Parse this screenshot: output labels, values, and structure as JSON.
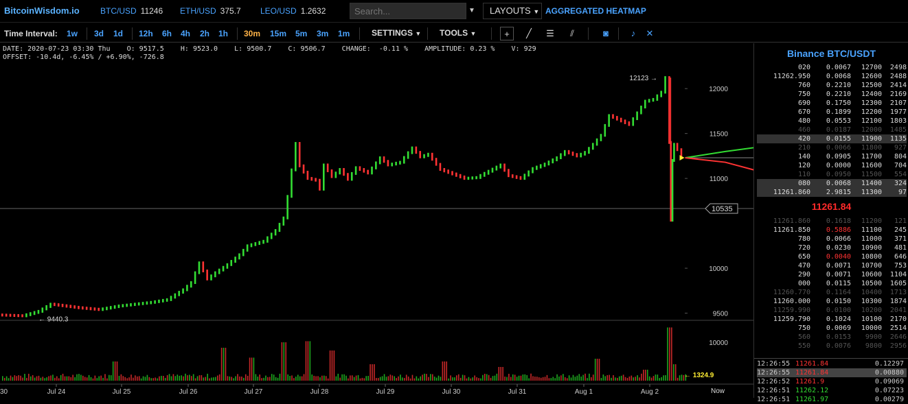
{
  "topbar": {
    "brand": "BitcoinWisdom.io",
    "tickers": [
      {
        "symbol": "BTC/USD",
        "price": "11246"
      },
      {
        "symbol": "ETH/USD",
        "price": "375.7"
      },
      {
        "symbol": "LEO/USD",
        "price": "1.2632"
      }
    ],
    "search_placeholder": "Search...",
    "layouts_label": "LAYOUTS",
    "heatmap_label": "AGGREGATED HEATMAP"
  },
  "toolbar": {
    "time_interval_label": "Time Interval:",
    "intervals": [
      "1w",
      "3d",
      "1d",
      "12h",
      "6h",
      "4h",
      "2h",
      "1h",
      "30m",
      "15m",
      "5m",
      "3m",
      "1m"
    ],
    "active_interval": "30m",
    "settings_label": "SETTINGS",
    "tools_label": "TOOLS"
  },
  "info": {
    "line1": "DATE: 2020-07-23 03:30 Thu    O: 9517.5    H: 9523.0    L: 9500.7    C: 9506.7    CHANGE:  -0.11 %    AMPLITUDE: 0.23 %    V: 929",
    "line2": "OFFSET: -10.4d, -6.45% / +6.90%, -726.8"
  },
  "chart_data": {
    "type": "line",
    "x_labels": [
      "Jul 24",
      "Jul 25",
      "Jul 26",
      "Jul 27",
      "Jul 28",
      "Jul 29",
      "Jul 30",
      "Jul 31",
      "Aug 1",
      "Aug 2"
    ],
    "x_label_left_edge": "30",
    "x_now_label": "Now",
    "price_axis_ticks": [
      "12000",
      "11500",
      "11000",
      "10000",
      "9500"
    ],
    "volume_axis_ticks": [
      "10000"
    ],
    "ylim": [
      9420,
      12200
    ],
    "crosshair_price": "10535",
    "high_marker": "12123",
    "low_marker": "9440.3",
    "volume_marker": "1324.9",
    "price_path": [
      [
        0,
        9480
      ],
      [
        6,
        9470
      ],
      [
        10,
        9520
      ],
      [
        13,
        9600
      ],
      [
        20,
        9560
      ],
      [
        25,
        9540
      ],
      [
        30,
        9580
      ],
      [
        34,
        9600
      ],
      [
        38,
        9620
      ],
      [
        42,
        9650
      ],
      [
        46,
        9760
      ],
      [
        48,
        9840
      ],
      [
        50,
        10060
      ],
      [
        52,
        9880
      ],
      [
        54,
        9950
      ],
      [
        57,
        10040
      ],
      [
        60,
        10150
      ],
      [
        62,
        10250
      ],
      [
        66,
        10300
      ],
      [
        69,
        10420
      ],
      [
        71,
        10560
      ],
      [
        72,
        10800
      ],
      [
        74,
        11390
      ],
      [
        75,
        11140
      ],
      [
        77,
        11000
      ],
      [
        79,
        10980
      ],
      [
        80,
        10880
      ],
      [
        81,
        11150
      ],
      [
        83,
        11020
      ],
      [
        85,
        11100
      ],
      [
        87,
        10990
      ],
      [
        89,
        11120
      ],
      [
        92,
        11060
      ],
      [
        95,
        11230
      ],
      [
        97,
        11150
      ],
      [
        100,
        11180
      ],
      [
        103,
        11340
      ],
      [
        105,
        11240
      ],
      [
        107,
        11270
      ],
      [
        110,
        11100
      ],
      [
        113,
        11050
      ],
      [
        116,
        11000
      ],
      [
        119,
        11010
      ],
      [
        122,
        11080
      ],
      [
        125,
        11150
      ],
      [
        127,
        11030
      ],
      [
        130,
        11000
      ],
      [
        133,
        11110
      ],
      [
        136,
        11160
      ],
      [
        139,
        11230
      ],
      [
        141,
        11300
      ],
      [
        144,
        11250
      ],
      [
        146,
        11290
      ],
      [
        148,
        11380
      ],
      [
        150,
        11480
      ],
      [
        152,
        11700
      ],
      [
        155,
        11640
      ],
      [
        157,
        11600
      ],
      [
        159,
        11730
      ],
      [
        161,
        11860
      ],
      [
        163,
        11880
      ],
      [
        165,
        11960
      ],
      [
        166,
        12123
      ],
      [
        166.4,
        11400
      ],
      [
        166.8,
        10535
      ],
      [
        167.2,
        11200
      ],
      [
        168,
        11380
      ],
      [
        170,
        11260
      ]
    ],
    "forecast_up": [
      [
        170,
        11230
      ],
      [
        180,
        11300
      ],
      [
        190,
        11360
      ]
    ],
    "forecast_down": [
      [
        170,
        11230
      ],
      [
        180,
        11180
      ],
      [
        190,
        11060
      ]
    ],
    "volume_spikes": [
      [
        28,
        0.35
      ],
      [
        55,
        0.6
      ],
      [
        62,
        0.42
      ],
      [
        70,
        0.7
      ],
      [
        76,
        0.72
      ],
      [
        82,
        0.55
      ],
      [
        92,
        0.3
      ],
      [
        110,
        0.35
      ],
      [
        124,
        0.25
      ],
      [
        148,
        0.4
      ],
      [
        160,
        0.2
      ],
      [
        166,
        0.97
      ],
      [
        167,
        0.3
      ]
    ]
  },
  "orderbook": {
    "title": "Binance BTC/USDT",
    "asks": [
      [
        "020",
        "0.0067",
        "12700",
        "2498"
      ],
      [
        "11262.950",
        "0.0068",
        "12600",
        "2488"
      ],
      [
        "760",
        "0.2210",
        "12500",
        "2414"
      ],
      [
        "750",
        "0.2210",
        "12400",
        "2169"
      ],
      [
        "690",
        "0.1750",
        "12300",
        "2107"
      ],
      [
        "670",
        "0.1899",
        "12200",
        "1977"
      ],
      [
        "480",
        "0.0553",
        "12100",
        "1803"
      ],
      [
        "460",
        "0.0187",
        "12000",
        "1485"
      ],
      [
        "420",
        "0.0155",
        "11900",
        "1135"
      ],
      [
        "210",
        "0.0066",
        "11800",
        "927"
      ],
      [
        "140",
        "0.0905",
        "11700",
        "804"
      ],
      [
        "120",
        "0.0000",
        "11600",
        "704"
      ],
      [
        "110",
        "0.0950",
        "11500",
        "554"
      ],
      [
        "080",
        "0.0068",
        "11400",
        "324"
      ],
      [
        "11261.860",
        "2.9815",
        "11300",
        "97"
      ]
    ],
    "ask_dim_rows": [
      7,
      9,
      12
    ],
    "ask_hl_rows": [
      8,
      13,
      14
    ],
    "mid_price": "11261.84",
    "bids": [
      [
        "11261.860",
        "0.1618",
        "11200",
        "121"
      ],
      [
        "11261.850",
        "0.5886",
        "11100",
        "245"
      ],
      [
        "780",
        "0.0066",
        "11000",
        "371"
      ],
      [
        "720",
        "0.0230",
        "10900",
        "481"
      ],
      [
        "650",
        "0.0040",
        "10800",
        "646"
      ],
      [
        "470",
        "0.0071",
        "10700",
        "753"
      ],
      [
        "290",
        "0.0071",
        "10600",
        "1104"
      ],
      [
        "000",
        "0.0115",
        "10500",
        "1605"
      ],
      [
        "11260.770",
        "0.1164",
        "10400",
        "1713"
      ],
      [
        "11260.000",
        "0.0150",
        "10300",
        "1874"
      ],
      [
        "11259.990",
        "0.0100",
        "10200",
        "2041"
      ],
      [
        "11259.790",
        "0.1024",
        "10100",
        "2170"
      ],
      [
        "750",
        "0.0069",
        "10000",
        "2514"
      ],
      [
        "560",
        "0.0153",
        "9900",
        "2646"
      ],
      [
        "550",
        "0.0076",
        "9800",
        "2956"
      ]
    ],
    "bid_dim_rows": [
      0,
      8,
      10,
      13,
      14
    ],
    "bid_red_qty_rows": [
      1,
      4
    ]
  },
  "trades": [
    {
      "time": "12:26:55",
      "price": "11261.84",
      "dir": "down",
      "qty": "0.12297"
    },
    {
      "time": "12:26:55",
      "price": "11261.84",
      "dir": "down",
      "qty": "0.00880"
    },
    {
      "time": "12:26:52",
      "price": "11261.9",
      "dir": "down",
      "qty": "0.09069"
    },
    {
      "time": "12:26:51",
      "price": "11262.12",
      "dir": "up",
      "qty": "0.07223"
    },
    {
      "time": "12:26:51",
      "price": "11261.97",
      "dir": "up",
      "qty": "0.00279"
    }
  ],
  "colors": {
    "accent": "#4aa3ff",
    "up": "#33dd33",
    "down": "#ff3333",
    "active": "#ffb347"
  }
}
